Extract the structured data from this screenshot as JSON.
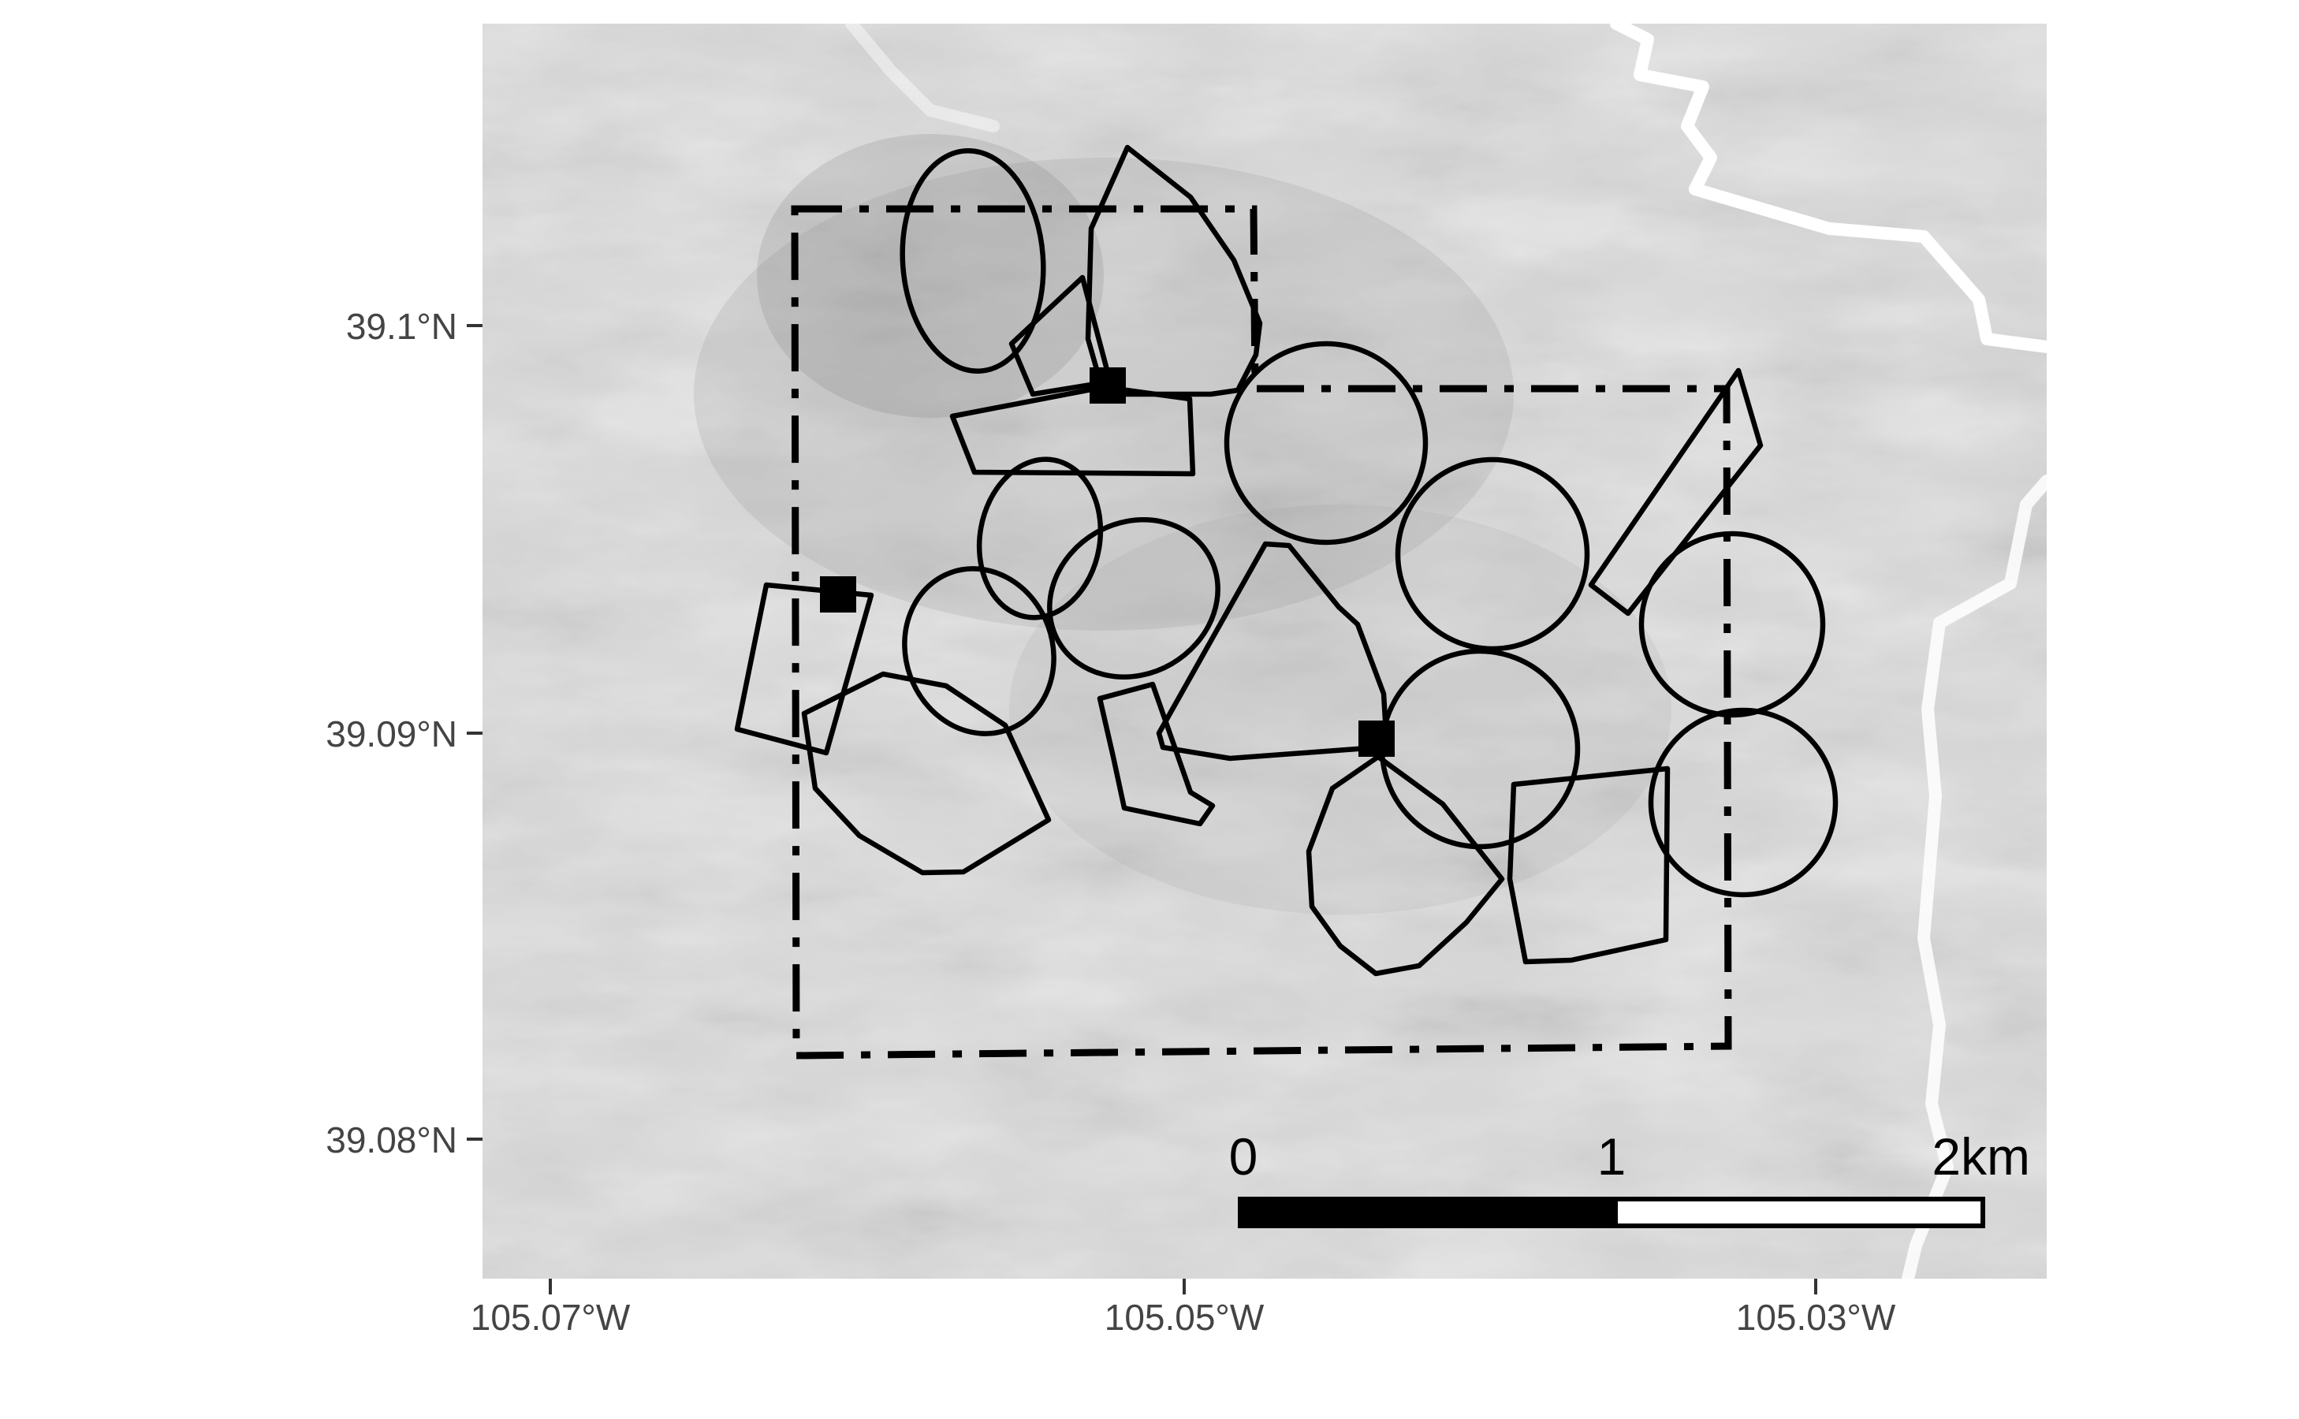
{
  "map": {
    "y_axis_labels": [
      "39.1°N",
      "39.09°N",
      "39.08°N"
    ],
    "x_axis_labels": [
      "105.07°W",
      "105.05°W",
      "105.03°W"
    ],
    "scale_bar": {
      "labels": [
        "0",
        "1",
        "2km"
      ],
      "segment_colors": [
        "#000000",
        "#ffffff"
      ]
    },
    "basemap": "grayscale hillshade terrain",
    "colors": {
      "outlines": "#000000",
      "roads": "#ffffff",
      "hillshade_base": "#cfcfcf"
    }
  }
}
